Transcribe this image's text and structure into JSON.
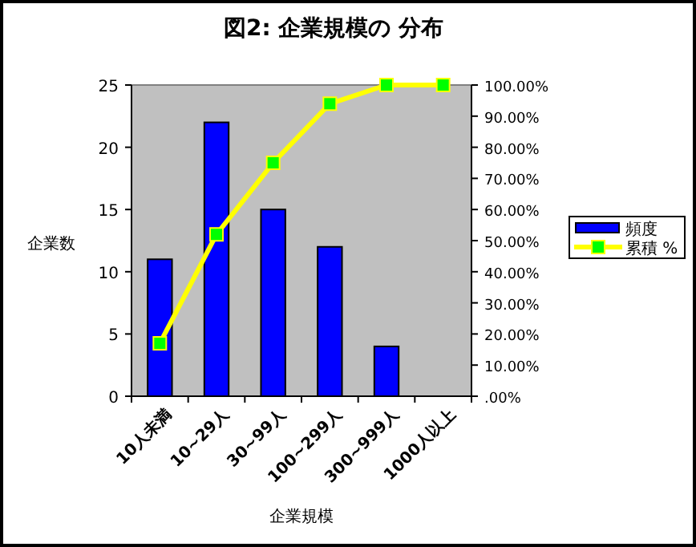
{
  "chart_data": {
    "type": "bar",
    "title": "図2: 企業規模の 分布",
    "xlabel": "企業規模",
    "ylabel": "企業数",
    "categories": [
      "10人未満",
      "10~29人",
      "30~99人",
      "100~299人",
      "300~999人",
      "1000人以上"
    ],
    "series": [
      {
        "name": "頻度",
        "color": "#0000ff",
        "values": [
          11,
          22,
          15,
          12,
          4,
          0
        ]
      },
      {
        "name": "累積 %",
        "type": "line",
        "axis": "y2",
        "color": "#ffff00",
        "marker": "square",
        "values": [
          17,
          52,
          75,
          94,
          100,
          100
        ]
      }
    ],
    "ylim": [
      0,
      25
    ],
    "yticks": [
      0,
      5,
      10,
      15,
      20,
      25
    ],
    "y2lim": [
      0,
      100
    ],
    "y2ticks": [
      {
        "value": 0,
        "label": ".00%"
      },
      {
        "value": 10,
        "label": "10.00%"
      },
      {
        "value": 20,
        "label": "20.00%"
      },
      {
        "value": 30,
        "label": "30.00%"
      },
      {
        "value": 40,
        "label": "40.00%"
      },
      {
        "value": 50,
        "label": "50.00%"
      },
      {
        "value": 60,
        "label": "60.00%"
      },
      {
        "value": 70,
        "label": "70.00%"
      },
      {
        "value": 80,
        "label": "80.00%"
      },
      {
        "value": 90,
        "label": "90.00%"
      },
      {
        "value": 100,
        "label": "100.00%"
      }
    ],
    "legend": "right",
    "grid": false
  }
}
